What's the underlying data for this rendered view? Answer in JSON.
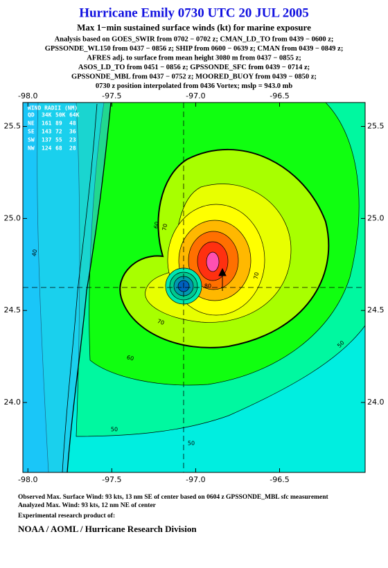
{
  "header": {
    "title": "Hurricane Emily 0730 UTC 20 JUL 2005",
    "subtitle": "Max 1−min sustained surface winds (kt) for marine exposure",
    "analysis": [
      "Analysis based on  GOES_SWIR from 0702 − 0702 z;  CMAN_LD_TO from 0439 − 0600 z;",
      "GPSSONDE_WL150 from 0437 − 0856 z;  SHIP from 0600 − 0639 z;  CMAN from 0439 − 0849 z;",
      "AFRES adj. to surface from mean height 3080 m from 0437 − 0855 z;",
      "ASOS_LD_TO from 0451 − 0856 z;  GPSSONDE_SFC from 0439 − 0714 z;",
      "GPSSONDE_MBL from 0437 − 0752 z;  MOORED_BUOY from 0439 − 0850 z;",
      "0730 z position interpolated from 0436 Vortex; mslp = 943.0 mb"
    ]
  },
  "map": {
    "xlim": [
      -98.03,
      -95.99
    ],
    "ylim": [
      23.62,
      25.63
    ],
    "xticks": [
      {
        "value": -98.0,
        "label": "-98.0"
      },
      {
        "value": -97.5,
        "label": "-97.5"
      },
      {
        "value": -97.0,
        "label": "-97.0"
      },
      {
        "value": -96.5,
        "label": "-96.5"
      }
    ],
    "yticks": [
      {
        "value": 24.0,
        "label": "24.0"
      },
      {
        "value": 24.5,
        "label": "24.5"
      },
      {
        "value": 25.0,
        "label": "25.0"
      },
      {
        "value": 25.5,
        "label": "25.5"
      }
    ],
    "contour_labels": [
      "40",
      "50",
      "50",
      "50",
      "60",
      "60",
      "70",
      "70",
      "70",
      "80"
    ],
    "wind_radii": {
      "title": "WIND RADII (NM)",
      "header": [
        "QD",
        "34K",
        "50K",
        "64K"
      ],
      "rows": [
        [
          "NE",
          "161",
          "89",
          "48"
        ],
        [
          "SE",
          "143",
          "72",
          "36"
        ],
        [
          "SW",
          "137",
          "55",
          "23"
        ],
        [
          "NW",
          "124",
          "68",
          "28"
        ]
      ]
    }
  },
  "footer": {
    "observed": "Observed Max. Surface Wind: 93 kts, 13 nm SE of center based on 0604 z GPSSONDE_MBL sfc measurement",
    "analyzed": "Analyzed Max. Wind: 93 kts, 12 nm NE of center",
    "product": "Experimental research product of:",
    "org": "NOAA / AOML / Hurricane Research Division"
  }
}
